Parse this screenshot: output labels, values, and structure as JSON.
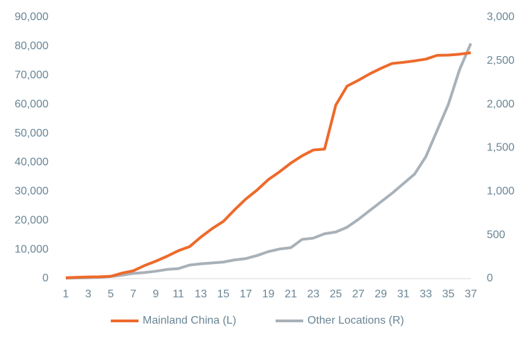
{
  "chart_data": {
    "type": "line",
    "x": [
      1,
      2,
      3,
      4,
      5,
      6,
      7,
      8,
      9,
      10,
      11,
      12,
      13,
      14,
      15,
      16,
      17,
      18,
      19,
      20,
      21,
      22,
      23,
      24,
      25,
      26,
      27,
      28,
      29,
      30,
      31,
      32,
      33,
      34,
      35,
      36,
      37
    ],
    "xlim": [
      1,
      37
    ],
    "xticks": [
      1,
      3,
      5,
      7,
      9,
      11,
      13,
      15,
      17,
      19,
      21,
      23,
      25,
      27,
      29,
      31,
      33,
      35,
      37
    ],
    "ylim": [
      0,
      90000
    ],
    "yticks": [
      0,
      {
        "value": 10000,
        "label": "10,000"
      },
      {
        "value": 20000,
        "label": "20,000"
      },
      {
        "value": 30000,
        "label": "30,000"
      },
      {
        "value": 40000,
        "label": "40,000"
      },
      {
        "value": 50000,
        "label": "50,000"
      },
      {
        "value": 60000,
        "label": "60,000"
      },
      {
        "value": 70000,
        "label": "70,000"
      },
      {
        "value": 80000,
        "label": "80,000"
      },
      {
        "value": 90000,
        "label": "90,000"
      }
    ],
    "y2lim": [
      0,
      3000
    ],
    "y2ticks": [
      0,
      500,
      {
        "value": 1000,
        "label": "1,000"
      },
      {
        "value": 1500,
        "label": "1,500"
      },
      {
        "value": 2000,
        "label": "2,000"
      },
      {
        "value": 2500,
        "label": "2,500"
      },
      {
        "value": 3000,
        "label": "3,000"
      }
    ],
    "grid": false,
    "legend": "bottom",
    "series": [
      {
        "name": "Mainland China (L)",
        "color": "#ed6a2b",
        "axis": "y",
        "values": [
          300,
          440,
          570,
          620,
          800,
          1900,
          2700,
          4500,
          6000,
          7700,
          9600,
          11000,
          14300,
          17200,
          19700,
          23700,
          27400,
          30500,
          34100,
          36800,
          39800,
          42300,
          44300,
          44600,
          59800,
          66300,
          68300,
          70500,
          72400,
          74100,
          74500,
          75000,
          75600,
          76900,
          77000,
          77300,
          77800
        ]
      },
      {
        "name": "Other Locations (R)",
        "color": "#a9b1b8",
        "axis": "y2",
        "values": [
          5,
          8,
          10,
          15,
          25,
          40,
          60,
          70,
          85,
          105,
          115,
          155,
          170,
          180,
          190,
          215,
          230,
          265,
          310,
          340,
          355,
          450,
          465,
          515,
          535,
          590,
          680,
          780,
          880,
          980,
          1090,
          1200,
          1400,
          1700,
          2000,
          2400,
          2700
        ]
      }
    ]
  }
}
